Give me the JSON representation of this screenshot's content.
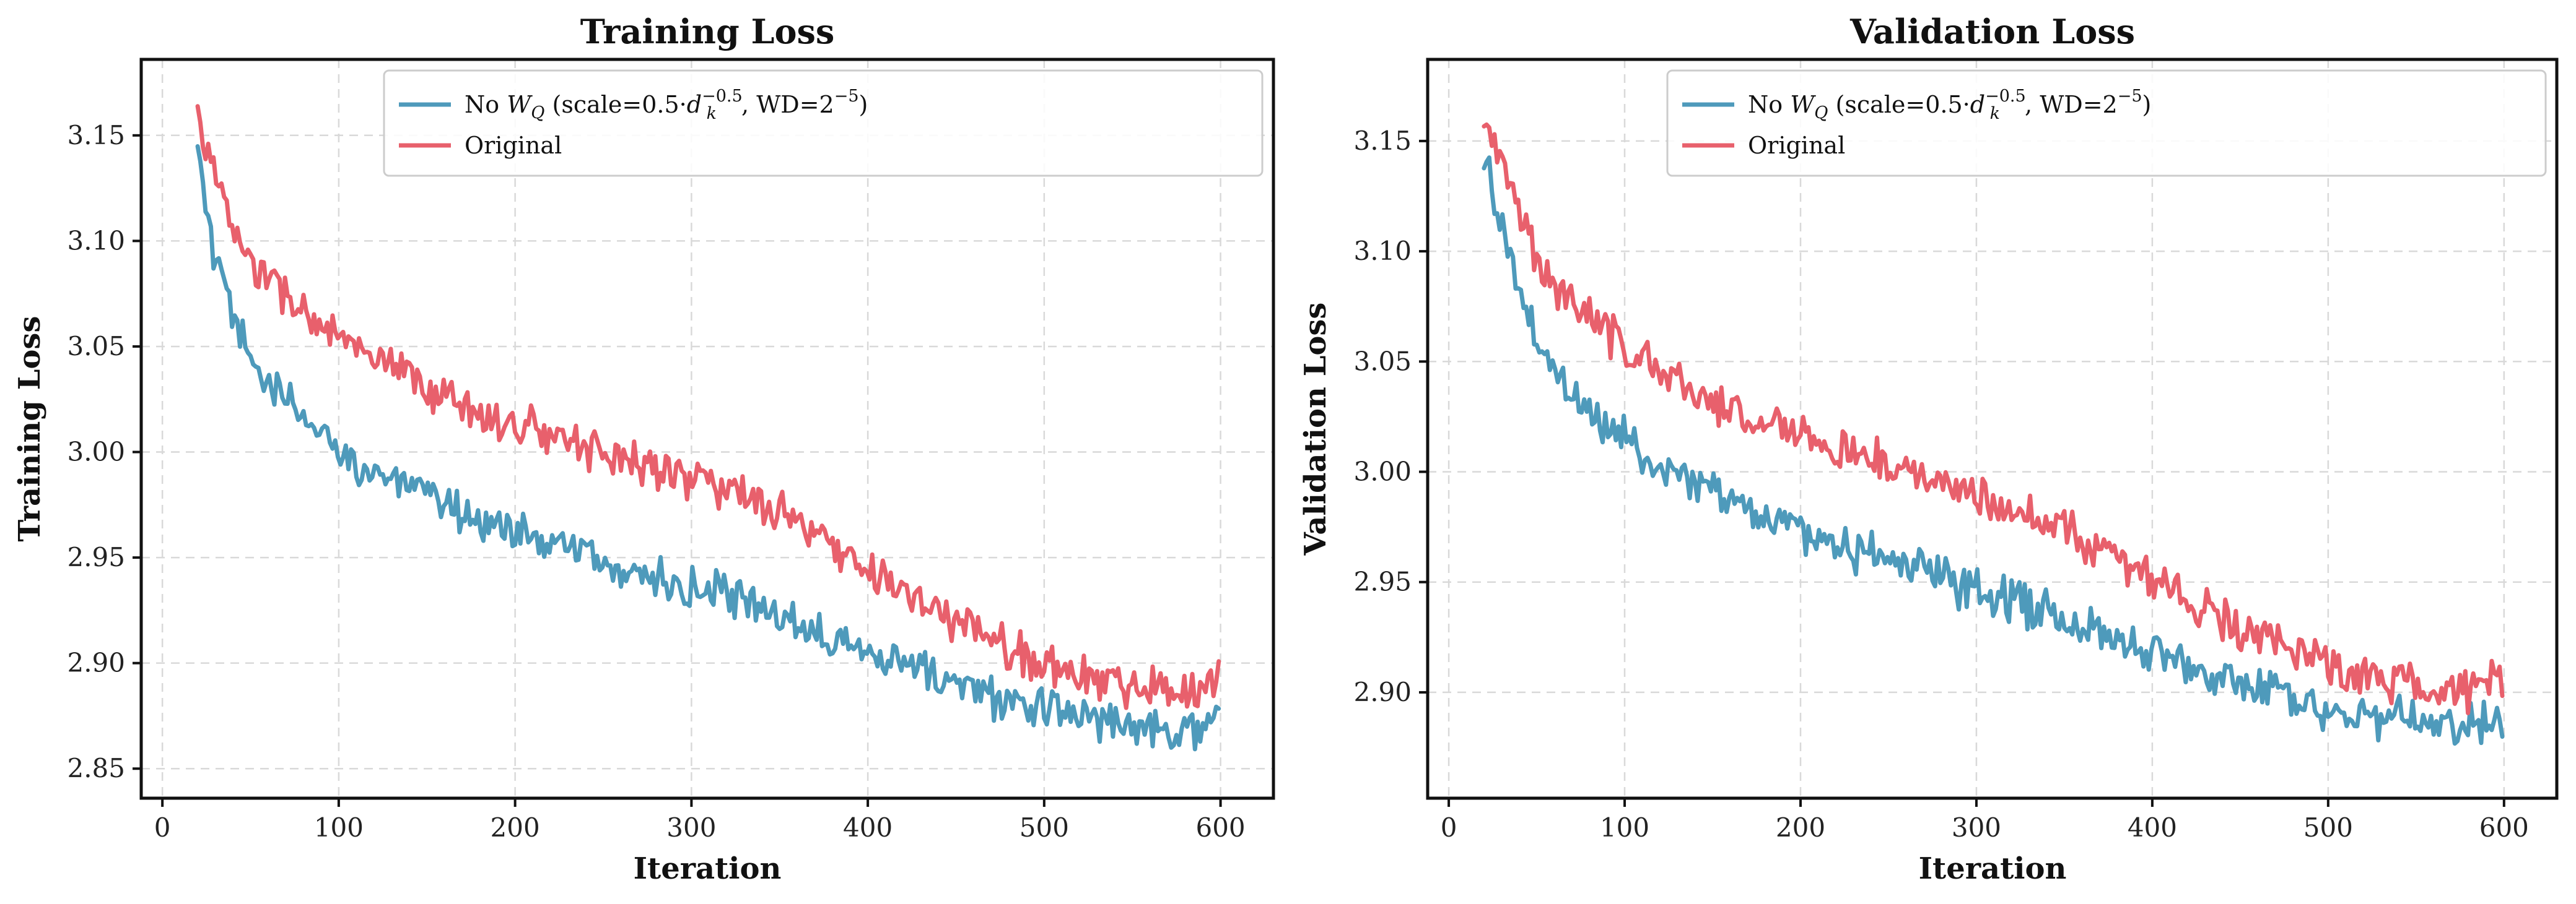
{
  "chart_data": [
    {
      "type": "line",
      "title": "Training Loss",
      "xlabel": "Iteration",
      "ylabel": "Training Loss",
      "xlim": [
        -12,
        630
      ],
      "ylim": [
        2.836,
        3.186
      ],
      "xticks": [
        0,
        100,
        200,
        300,
        400,
        500,
        600
      ],
      "xtick_labels": [
        "0",
        "100",
        "200",
        "300",
        "400",
        "500",
        "600"
      ],
      "yticks": [
        2.85,
        2.9,
        2.95,
        3.0,
        3.05,
        3.1,
        3.15
      ],
      "ytick_labels": [
        "2.85",
        "2.90",
        "2.95",
        "3.00",
        "3.05",
        "3.10",
        "3.15"
      ],
      "grid": true,
      "legend_position": "top-right",
      "series": [
        {
          "name": "No W_Q (scale=0.5·d_k^-0.5, WD=2^-5)",
          "legend_parts": {
            "prefix": "No ",
            "w": "W",
            "w_sub": "Q",
            "mid": " (scale=0.5·",
            "d": "d",
            "d_sub": "k",
            "d_sup": "−0.5",
            "tail": ", WD=2",
            "tail_sup": "−5",
            "end": ")"
          },
          "color": "#4e9abb",
          "x": [
            20,
            30,
            40,
            50,
            60,
            70,
            80,
            90,
            100,
            120,
            140,
            160,
            180,
            200,
            220,
            240,
            260,
            280,
            300,
            320,
            340,
            360,
            380,
            400,
            420,
            440,
            460,
            480,
            500,
            520,
            540,
            560,
            580,
            600
          ],
          "y": [
            3.14,
            3.09,
            3.062,
            3.045,
            3.033,
            3.024,
            3.016,
            3.008,
            3.001,
            2.991,
            2.982,
            2.975,
            2.969,
            2.963,
            2.957,
            2.951,
            2.945,
            2.94,
            2.935,
            2.931,
            2.926,
            2.92,
            2.914,
            2.907,
            2.9,
            2.893,
            2.887,
            2.882,
            2.878,
            2.875,
            2.873,
            2.871,
            2.869,
            2.872
          ],
          "noise": 0.008
        },
        {
          "name": "Original",
          "color": "#e8606c",
          "x": [
            20,
            30,
            40,
            50,
            60,
            70,
            80,
            90,
            100,
            120,
            140,
            160,
            180,
            200,
            220,
            240,
            260,
            280,
            300,
            320,
            340,
            360,
            380,
            400,
            420,
            440,
            460,
            480,
            500,
            520,
            540,
            560,
            580,
            600
          ],
          "y": [
            3.16,
            3.13,
            3.105,
            3.09,
            3.081,
            3.074,
            3.067,
            3.06,
            3.054,
            3.043,
            3.034,
            3.026,
            3.019,
            3.013,
            3.008,
            3.003,
            2.998,
            2.993,
            2.988,
            2.982,
            2.975,
            2.966,
            2.955,
            2.944,
            2.934,
            2.924,
            2.915,
            2.907,
            2.9,
            2.894,
            2.891,
            2.889,
            2.887,
            2.893
          ],
          "noise": 0.008
        }
      ]
    },
    {
      "type": "line",
      "title": "Validation Loss",
      "xlabel": "Iteration",
      "ylabel": "Validation Loss",
      "xlim": [
        -12,
        630
      ],
      "ylim": [
        2.852,
        3.187
      ],
      "xticks": [
        0,
        100,
        200,
        300,
        400,
        500,
        600
      ],
      "xtick_labels": [
        "0",
        "100",
        "200",
        "300",
        "400",
        "500",
        "600"
      ],
      "yticks": [
        2.9,
        2.95,
        3.0,
        3.05,
        3.1,
        3.15
      ],
      "ytick_labels": [
        "2.90",
        "2.95",
        "3.00",
        "3.05",
        "3.10",
        "3.15"
      ],
      "grid": true,
      "legend_position": "top-right",
      "series": [
        {
          "name": "No W_Q (scale=0.5·d_k^-0.5, WD=2^-5)",
          "legend_parts": {
            "prefix": "No ",
            "w": "W",
            "w_sub": "Q",
            "mid": " (scale=0.5·",
            "d": "d",
            "d_sub": "k",
            "d_sup": "−0.5",
            "tail": ", WD=2",
            "tail_sup": "−5",
            "end": ")"
          },
          "color": "#4e9abb",
          "x": [
            20,
            30,
            40,
            50,
            60,
            70,
            80,
            90,
            100,
            120,
            140,
            160,
            180,
            200,
            220,
            240,
            260,
            280,
            300,
            320,
            340,
            360,
            380,
            400,
            420,
            440,
            460,
            480,
            500,
            520,
            540,
            560,
            580,
            600
          ],
          "y": [
            3.145,
            3.11,
            3.08,
            3.06,
            3.046,
            3.036,
            3.028,
            3.021,
            3.015,
            3.004,
            2.995,
            2.987,
            2.98,
            2.974,
            2.968,
            2.962,
            2.957,
            2.952,
            2.947,
            2.942,
            2.937,
            2.931,
            2.925,
            2.919,
            2.913,
            2.907,
            2.902,
            2.898,
            2.894,
            2.891,
            2.888,
            2.886,
            2.885,
            2.888
          ],
          "noise": 0.008
        },
        {
          "name": "Original",
          "color": "#e8606c",
          "x": [
            20,
            30,
            40,
            50,
            60,
            70,
            80,
            90,
            100,
            120,
            140,
            160,
            180,
            200,
            220,
            240,
            260,
            280,
            300,
            320,
            340,
            360,
            380,
            400,
            420,
            440,
            460,
            480,
            500,
            520,
            540,
            560,
            580,
            600
          ],
          "y": [
            3.165,
            3.14,
            3.115,
            3.098,
            3.087,
            3.078,
            3.07,
            3.063,
            3.057,
            3.046,
            3.037,
            3.029,
            3.022,
            3.016,
            3.011,
            3.006,
            3.001,
            2.996,
            2.991,
            2.985,
            2.978,
            2.969,
            2.96,
            2.951,
            2.942,
            2.933,
            2.925,
            2.918,
            2.912,
            2.907,
            2.904,
            2.902,
            2.901,
            2.905
          ],
          "noise": 0.008
        }
      ]
    }
  ]
}
